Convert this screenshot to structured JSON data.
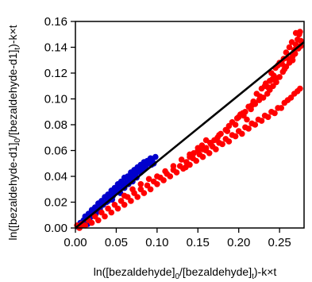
{
  "chart_data": {
    "type": "scatter",
    "xlabel": {
      "parts": [
        {
          "text": "ln([bezaldehyde]",
          "sub": false
        },
        {
          "text": "0",
          "sub": true
        },
        {
          "text": "/[bezaldehyde]",
          "sub": false
        },
        {
          "text": "t",
          "sub": true
        },
        {
          "text": ")-k×t",
          "sub": false
        }
      ]
    },
    "ylabel": {
      "parts": [
        {
          "text": "ln([bezaldehyde-d1]",
          "sub": false
        },
        {
          "text": "0",
          "sub": true
        },
        {
          "text": "/[bezaldehyde-d1]",
          "sub": false
        },
        {
          "text": "t",
          "sub": true
        },
        {
          "text": ")-k×t",
          "sub": false
        }
      ]
    },
    "xlim": [
      0,
      0.28
    ],
    "ylim": [
      0,
      0.16
    ],
    "x_ticks": [
      0.0,
      0.05,
      0.1,
      0.15,
      0.2,
      0.25
    ],
    "x_tick_labels": [
      "0.00",
      "0.05",
      "0.10",
      "0.15",
      "0.20",
      "0.25"
    ],
    "y_ticks": [
      0.0,
      0.02,
      0.04,
      0.06,
      0.08,
      0.1,
      0.12,
      0.14,
      0.16
    ],
    "y_tick_labels": [
      "0.00",
      "0.02",
      "0.04",
      "0.06",
      "0.08",
      "0.10",
      "0.12",
      "0.14",
      "0.16"
    ],
    "grid": false,
    "series": [
      {
        "color": "#0000cc",
        "points": [
          [
            0.003,
            0.001
          ],
          [
            0.006,
            0.004
          ],
          [
            0.008,
            0.002
          ],
          [
            0.01,
            0.006
          ],
          [
            0.012,
            0.009
          ],
          [
            0.014,
            0.005
          ],
          [
            0.016,
            0.011
          ],
          [
            0.018,
            0.008
          ],
          [
            0.02,
            0.014
          ],
          [
            0.022,
            0.01
          ],
          [
            0.024,
            0.016
          ],
          [
            0.026,
            0.013
          ],
          [
            0.028,
            0.019
          ],
          [
            0.03,
            0.015
          ],
          [
            0.032,
            0.021
          ],
          [
            0.034,
            0.018
          ],
          [
            0.036,
            0.024
          ],
          [
            0.038,
            0.02
          ],
          [
            0.04,
            0.026
          ],
          [
            0.042,
            0.023
          ],
          [
            0.044,
            0.029
          ],
          [
            0.046,
            0.025
          ],
          [
            0.048,
            0.031
          ],
          [
            0.05,
            0.028
          ],
          [
            0.052,
            0.034
          ],
          [
            0.054,
            0.03
          ],
          [
            0.056,
            0.036
          ],
          [
            0.058,
            0.033
          ],
          [
            0.06,
            0.039
          ],
          [
            0.062,
            0.035
          ],
          [
            0.064,
            0.04
          ],
          [
            0.066,
            0.038
          ],
          [
            0.068,
            0.043
          ],
          [
            0.07,
            0.04
          ],
          [
            0.072,
            0.045
          ],
          [
            0.074,
            0.042
          ],
          [
            0.076,
            0.047
          ],
          [
            0.078,
            0.044
          ],
          [
            0.08,
            0.049
          ],
          [
            0.082,
            0.047
          ],
          [
            0.084,
            0.051
          ],
          [
            0.086,
            0.048
          ],
          [
            0.088,
            0.052
          ],
          [
            0.09,
            0.05
          ],
          [
            0.092,
            0.054
          ],
          [
            0.094,
            0.052
          ],
          [
            0.096,
            0.05
          ],
          [
            0.098,
            0.055
          ],
          [
            0.015,
            0.003
          ],
          [
            0.025,
            0.011
          ],
          [
            0.045,
            0.022
          ],
          [
            0.055,
            0.027
          ],
          [
            0.065,
            0.034
          ],
          [
            0.075,
            0.039
          ],
          [
            0.085,
            0.046
          ],
          [
            0.093,
            0.049
          ],
          [
            0.04,
            0.021
          ],
          [
            0.06,
            0.031
          ],
          [
            0.07,
            0.036
          ],
          [
            0.08,
            0.043
          ]
        ]
      },
      {
        "color": "#ff0000",
        "points": [
          [
            0.002,
            0.002
          ],
          [
            0.005,
            0.0
          ],
          [
            0.008,
            0.003
          ],
          [
            0.012,
            0.002
          ],
          [
            0.016,
            0.006
          ],
          [
            0.02,
            0.004
          ],
          [
            0.024,
            0.009
          ],
          [
            0.028,
            0.006
          ],
          [
            0.032,
            0.012
          ],
          [
            0.036,
            0.009
          ],
          [
            0.04,
            0.015
          ],
          [
            0.044,
            0.012
          ],
          [
            0.048,
            0.018
          ],
          [
            0.052,
            0.015
          ],
          [
            0.056,
            0.021
          ],
          [
            0.06,
            0.018
          ],
          [
            0.064,
            0.024
          ],
          [
            0.068,
            0.021
          ],
          [
            0.072,
            0.027
          ],
          [
            0.076,
            0.024
          ],
          [
            0.08,
            0.03
          ],
          [
            0.084,
            0.027
          ],
          [
            0.088,
            0.033
          ],
          [
            0.092,
            0.03
          ],
          [
            0.096,
            0.036
          ],
          [
            0.1,
            0.034
          ],
          [
            0.104,
            0.039
          ],
          [
            0.108,
            0.037
          ],
          [
            0.112,
            0.042
          ],
          [
            0.116,
            0.04
          ],
          [
            0.12,
            0.045
          ],
          [
            0.124,
            0.043
          ],
          [
            0.128,
            0.048
          ],
          [
            0.132,
            0.046
          ],
          [
            0.136,
            0.051
          ],
          [
            0.14,
            0.049
          ],
          [
            0.144,
            0.054
          ],
          [
            0.148,
            0.052
          ],
          [
            0.152,
            0.057
          ],
          [
            0.156,
            0.055
          ],
          [
            0.16,
            0.06
          ],
          [
            0.164,
            0.058
          ],
          [
            0.168,
            0.063
          ],
          [
            0.172,
            0.061
          ],
          [
            0.176,
            0.066
          ],
          [
            0.18,
            0.065
          ],
          [
            0.184,
            0.069
          ],
          [
            0.188,
            0.067
          ],
          [
            0.192,
            0.072
          ],
          [
            0.196,
            0.071
          ],
          [
            0.2,
            0.075
          ],
          [
            0.204,
            0.073
          ],
          [
            0.208,
            0.078
          ],
          [
            0.212,
            0.077
          ],
          [
            0.216,
            0.081
          ],
          [
            0.22,
            0.08
          ],
          [
            0.224,
            0.084
          ],
          [
            0.228,
            0.083
          ],
          [
            0.232,
            0.087
          ],
          [
            0.236,
            0.086
          ],
          [
            0.24,
            0.09
          ],
          [
            0.244,
            0.089
          ],
          [
            0.248,
            0.093
          ],
          [
            0.252,
            0.093
          ],
          [
            0.256,
            0.097
          ],
          [
            0.26,
            0.099
          ],
          [
            0.264,
            0.101
          ],
          [
            0.268,
            0.104
          ],
          [
            0.272,
            0.106
          ],
          [
            0.275,
            0.108
          ],
          [
            0.15,
            0.062
          ],
          [
            0.16,
            0.068
          ],
          [
            0.155,
            0.064
          ],
          [
            0.165,
            0.066
          ],
          [
            0.14,
            0.055
          ],
          [
            0.145,
            0.058
          ],
          [
            0.135,
            0.047
          ],
          [
            0.2,
            0.086
          ],
          [
            0.205,
            0.089
          ],
          [
            0.21,
            0.084
          ],
          [
            0.215,
            0.092
          ],
          [
            0.22,
            0.096
          ],
          [
            0.225,
            0.099
          ],
          [
            0.23,
            0.101
          ],
          [
            0.235,
            0.104
          ],
          [
            0.238,
            0.107
          ],
          [
            0.242,
            0.11
          ],
          [
            0.246,
            0.113
          ],
          [
            0.25,
            0.117
          ],
          [
            0.254,
            0.121
          ],
          [
            0.258,
            0.125
          ],
          [
            0.262,
            0.128
          ],
          [
            0.266,
            0.133
          ],
          [
            0.268,
            0.138
          ],
          [
            0.27,
            0.142
          ],
          [
            0.272,
            0.146
          ],
          [
            0.274,
            0.15
          ],
          [
            0.262,
            0.14
          ],
          [
            0.258,
            0.136
          ],
          [
            0.25,
            0.128
          ],
          [
            0.245,
            0.124
          ],
          [
            0.24,
            0.12
          ],
          [
            0.265,
            0.144
          ],
          [
            0.27,
            0.151
          ],
          [
            0.275,
            0.152
          ],
          [
            0.255,
            0.131
          ],
          [
            0.248,
            0.126
          ],
          [
            0.243,
            0.118
          ],
          [
            0.238,
            0.114
          ],
          [
            0.232,
            0.11
          ],
          [
            0.228,
            0.108
          ],
          [
            0.222,
            0.104
          ],
          [
            0.218,
            0.098
          ],
          [
            0.212,
            0.094
          ],
          [
            0.208,
            0.09
          ],
          [
            0.202,
            0.088
          ],
          [
            0.198,
            0.085
          ],
          [
            0.192,
            0.082
          ],
          [
            0.188,
            0.079
          ],
          [
            0.184,
            0.076
          ],
          [
            0.178,
            0.073
          ],
          [
            0.174,
            0.07
          ],
          [
            0.17,
            0.068
          ],
          [
            0.166,
            0.065
          ],
          [
            0.16,
            0.062
          ],
          [
            0.156,
            0.061
          ],
          [
            0.06,
            0.025
          ],
          [
            0.07,
            0.03
          ],
          [
            0.08,
            0.034
          ],
          [
            0.09,
            0.038
          ],
          [
            0.1,
            0.04
          ],
          [
            0.11,
            0.044
          ],
          [
            0.12,
            0.048
          ],
          [
            0.13,
            0.053
          ],
          [
            0.14,
            0.057
          ],
          [
            0.15,
            0.06
          ],
          [
            0.176,
            0.072
          ],
          [
            0.186,
            0.075
          ],
          [
            0.196,
            0.08
          ],
          [
            0.206,
            0.087
          ],
          [
            0.216,
            0.095
          ],
          [
            0.226,
            0.102
          ],
          [
            0.236,
            0.109
          ],
          [
            0.246,
            0.116
          ],
          [
            0.256,
            0.123
          ],
          [
            0.266,
            0.13
          ],
          [
            0.276,
            0.141
          ],
          [
            0.276,
            0.145
          ],
          [
            0.273,
            0.139
          ],
          [
            0.269,
            0.135
          ],
          [
            0.261,
            0.131
          ],
          [
            0.253,
            0.127
          ],
          [
            0.241,
            0.115
          ],
          [
            0.233,
            0.112
          ]
        ]
      }
    ],
    "fit_line": {
      "color": "#000000",
      "x": [
        0.0,
        0.28
      ],
      "y": [
        0.0,
        0.144
      ]
    }
  }
}
